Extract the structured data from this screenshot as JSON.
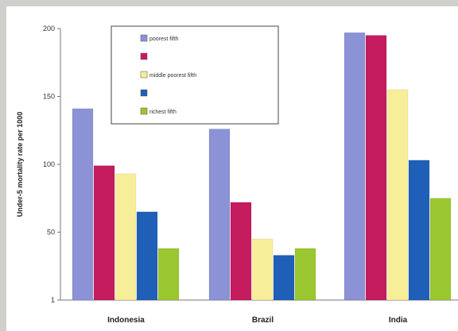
{
  "chart_data": {
    "type": "bar",
    "title": "",
    "xlabel": "",
    "ylabel": "Under-5 mortality rate per 1000",
    "categories": [
      "Indonesia",
      "Brazil",
      "India"
    ],
    "y_ticks": [
      "1",
      "50",
      "100",
      "150",
      "200"
    ],
    "ylim": [
      0,
      200
    ],
    "grid": false,
    "legend_placement": "top-center",
    "series": [
      {
        "name": "poorest fifth",
        "color": "#8b92d6",
        "values": [
          141,
          126,
          197
        ]
      },
      {
        "name": "",
        "color": "#c41c5e",
        "values": [
          99,
          72,
          195
        ]
      },
      {
        "name": "middle poorest fifth",
        "color": "#f7ee9a",
        "values": [
          93,
          45,
          155
        ]
      },
      {
        "name": "",
        "color": "#1f5fb8",
        "values": [
          65,
          33,
          103
        ]
      },
      {
        "name": "richest fifth",
        "color": "#9ac72f",
        "values": [
          38,
          38,
          75
        ]
      }
    ]
  }
}
